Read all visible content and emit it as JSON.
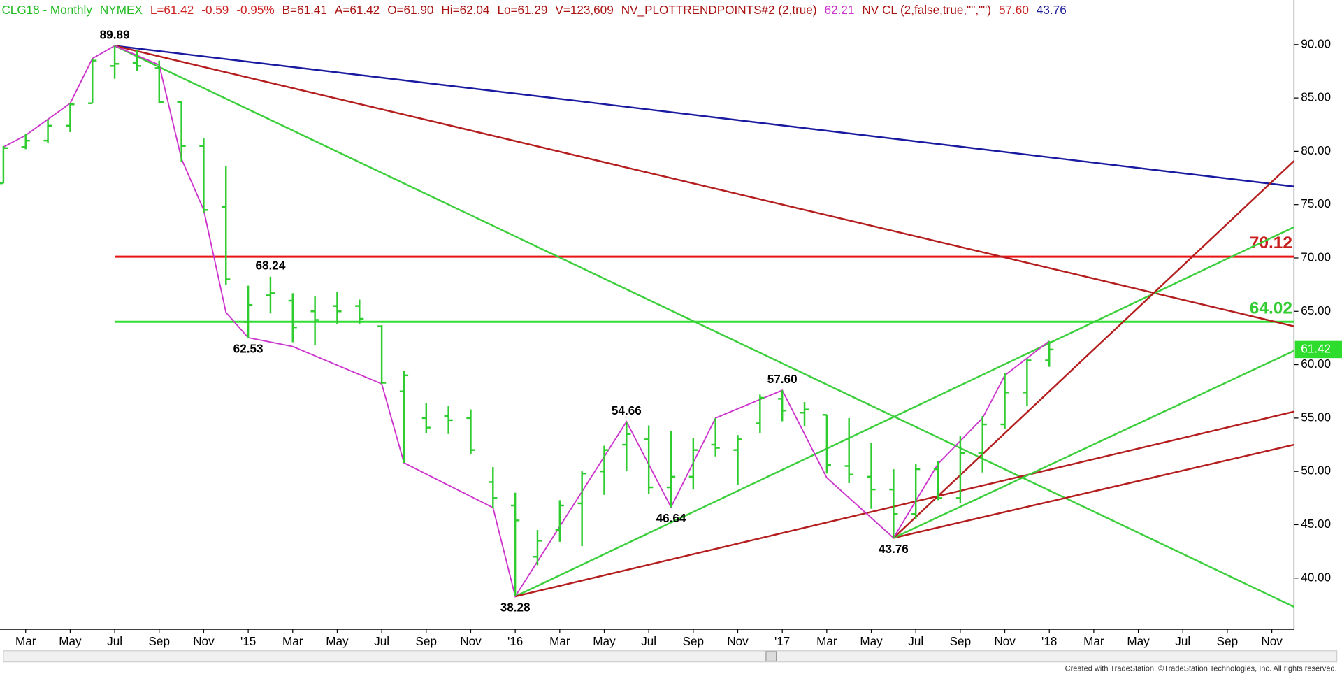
{
  "header": [
    {
      "text": "CLG18 - Monthly",
      "color": "#22bb22"
    },
    {
      "text": "NYMEX",
      "color": "#22bb22"
    },
    {
      "text": "L=61.42",
      "color": "#cc2222"
    },
    {
      "text": "-0.59",
      "color": "#cc2222"
    },
    {
      "text": "-0.95%",
      "color": "#cc2222"
    },
    {
      "text": "B=61.41",
      "color": "#aa1111"
    },
    {
      "text": "A=61.42",
      "color": "#aa1111"
    },
    {
      "text": "O=61.90",
      "color": "#aa1111"
    },
    {
      "text": "Hi=62.04",
      "color": "#aa1111"
    },
    {
      "text": "Lo=61.29",
      "color": "#aa1111"
    },
    {
      "text": "V=123,609",
      "color": "#aa1111"
    },
    {
      "text": "NV_PLOTTRENDPOINTS#2 (2,true)",
      "color": "#aa1111"
    },
    {
      "text": "62.21",
      "color": "#cc33cc"
    },
    {
      "text": "NV CL (2,false,true,\"\",\"\")",
      "color": "#aa1111"
    },
    {
      "text": "57.60",
      "color": "#cc2222"
    },
    {
      "text": "43.76",
      "color": "#1a1a99"
    }
  ],
  "footer": "Created with TradeStation. ©TradeStation Technologies, Inc. All rights reserved.",
  "chart_data": {
    "type": "ohlc",
    "color": "#2ecc2e",
    "categories": [
      null,
      "Mar",
      null,
      "May",
      null,
      "Jul",
      null,
      "Sep",
      null,
      "Nov",
      null,
      "'15",
      null,
      "Mar",
      null,
      "May",
      null,
      "Jul",
      null,
      "Sep",
      null,
      "Nov",
      null,
      "'16",
      null,
      "Mar",
      null,
      "May",
      null,
      "Jul",
      null,
      "Sep",
      null,
      "Nov",
      null,
      "'17",
      null,
      "Mar",
      null,
      "May",
      null,
      "Jul",
      null,
      "Sep",
      null,
      "Nov",
      null,
      "'18",
      null,
      "Mar",
      null,
      "May",
      null,
      "Jul",
      null,
      "Sep",
      null,
      "Nov",
      null
    ],
    "open": [
      77.0,
      80.4,
      81.0,
      82.4,
      84.5,
      88.0,
      88.3,
      87.8,
      84.6,
      80.5,
      74.8,
      64.0,
      66.5,
      66.0,
      65.0,
      65.5,
      65.5,
      63.6,
      57.5,
      55.0,
      55.2,
      55.0,
      49.0,
      46.8,
      42.0,
      44.5,
      47.0,
      50.0,
      52.5,
      53.0,
      48.5,
      49.5,
      52.5,
      52.0,
      54.5,
      56.8,
      55.5,
      55.3,
      50.5,
      49.5,
      48.3,
      46.0,
      50.2,
      47.5,
      51.7,
      54.4,
      57.4,
      60.4,
      null,
      null,
      null,
      null,
      null,
      null,
      null,
      null,
      null,
      null,
      null
    ],
    "high": [
      80.5,
      81.6,
      83.0,
      84.5,
      88.7,
      89.89,
      89.5,
      88.5,
      84.7,
      81.2,
      78.6,
      67.4,
      68.24,
      66.7,
      66.4,
      66.8,
      66.1,
      63.7,
      59.4,
      56.4,
      56.1,
      55.8,
      50.4,
      48.0,
      44.5,
      47.3,
      50.0,
      52.4,
      54.66,
      54.3,
      53.8,
      53.1,
      55.0,
      53.4,
      57.2,
      57.6,
      56.5,
      55.3,
      55.0,
      52.7,
      50.2,
      50.7,
      51.0,
      53.3,
      55.2,
      59.2,
      60.5,
      62.21,
      null,
      null,
      null,
      null,
      null,
      null,
      null,
      null,
      null,
      null,
      null
    ],
    "low": [
      77.0,
      80.2,
      80.8,
      81.8,
      84.5,
      86.8,
      87.5,
      84.5,
      79.0,
      74.2,
      67.5,
      62.53,
      64.8,
      62.1,
      61.8,
      63.8,
      63.8,
      58.2,
      50.8,
      53.6,
      53.5,
      51.6,
      46.6,
      38.28,
      41.2,
      43.4,
      43.0,
      47.8,
      50.0,
      47.9,
      46.64,
      48.3,
      51.4,
      48.7,
      53.6,
      54.7,
      54.2,
      49.8,
      48.9,
      46.5,
      43.76,
      45.5,
      47.3,
      47.0,
      49.9,
      54.0,
      56.1,
      59.8,
      null,
      null,
      null,
      null,
      null,
      null,
      null,
      null,
      null,
      null,
      null
    ],
    "close": [
      80.3,
      81.0,
      82.4,
      84.4,
      88.5,
      88.2,
      88.0,
      84.6,
      80.5,
      74.5,
      68.0,
      65.6,
      66.7,
      63.5,
      64.2,
      65.0,
      64.3,
      58.3,
      59.0,
      54.1,
      54.8,
      52.0,
      47.5,
      45.4,
      43.5,
      46.8,
      49.8,
      52.0,
      53.5,
      48.5,
      49.5,
      52.0,
      52.2,
      53.0,
      56.9,
      55.7,
      55.8,
      50.6,
      49.7,
      48.3,
      46.0,
      50.2,
      47.5,
      51.7,
      54.4,
      57.4,
      60.4,
      61.42,
      null,
      null,
      null,
      null,
      null,
      null,
      null,
      null,
      null,
      null,
      null
    ],
    "swing": {
      "color": "#cc33cc",
      "x": [
        0,
        1,
        2,
        3,
        4,
        5,
        7,
        8,
        9,
        10,
        11,
        13,
        17,
        18,
        22,
        23,
        28,
        30,
        32,
        35,
        37,
        40,
        42,
        44,
        45,
        47
      ],
      "values": [
        80.4,
        81.5,
        83.0,
        84.5,
        88.7,
        89.89,
        88.1,
        79.3,
        74.5,
        64.9,
        62.53,
        61.7,
        58.2,
        50.8,
        46.6,
        38.28,
        54.66,
        46.64,
        55.0,
        57.6,
        49.4,
        43.76,
        50.7,
        55.0,
        59.0,
        62.21
      ]
    },
    "annotations": [
      {
        "x": 5,
        "value": 89.89,
        "label": "89.89",
        "position": "above"
      },
      {
        "x": 11,
        "value": 62.53,
        "label": "62.53",
        "position": "below"
      },
      {
        "x": 12,
        "value": 68.24,
        "label": "68.24",
        "position": "above"
      },
      {
        "x": 23,
        "value": 38.28,
        "label": "38.28",
        "position": "below"
      },
      {
        "x": 28,
        "value": 54.66,
        "label": "54.66",
        "position": "above"
      },
      {
        "x": 30,
        "value": 46.64,
        "label": "46.64",
        "position": "below"
      },
      {
        "x": 35,
        "value": 57.6,
        "label": "57.60",
        "position": "above"
      },
      {
        "x": 40,
        "value": 43.76,
        "label": "43.76",
        "position": "below"
      }
    ],
    "trendlines": [
      {
        "color": "#1a1aa0",
        "x": [
          5,
          58
        ],
        "values": [
          89.89,
          76.7
        ]
      },
      {
        "color": "#b41e1e",
        "x": [
          5,
          58
        ],
        "values": [
          89.89,
          63.6
        ]
      },
      {
        "color": "#3ccf3c",
        "x": [
          5,
          58
        ],
        "values": [
          89.89,
          37.3
        ]
      },
      {
        "color": "#3ccf3c",
        "x": [
          23,
          58
        ],
        "values": [
          38.28,
          72.9
        ]
      },
      {
        "color": "#b41e1e",
        "x": [
          23,
          58
        ],
        "values": [
          38.28,
          55.6
        ]
      },
      {
        "color": "#b41e1e",
        "x": [
          40,
          58
        ],
        "values": [
          43.76,
          52.5
        ]
      },
      {
        "color": "#3ccf3c",
        "x": [
          40,
          58
        ],
        "values": [
          43.76,
          61.3
        ]
      },
      {
        "color": "#b41e1e",
        "x": [
          40,
          58
        ],
        "values": [
          43.76,
          79.1
        ]
      }
    ],
    "levels": [
      {
        "value": 70.12,
        "color": "#e81515",
        "label_color": "#c81e1e",
        "start": 5
      },
      {
        "value": 64.02,
        "color": "#33dd33",
        "label_color": "#33cc33",
        "start": 5
      }
    ],
    "last": {
      "value": 61.42,
      "color": "#2edc2e"
    },
    "ylim": [
      35.19,
      94.17
    ],
    "yticks": [
      {
        "value": 40,
        "label": "40.00"
      },
      {
        "value": 45,
        "label": "45.00"
      },
      {
        "value": 50,
        "label": "50.00"
      },
      {
        "value": 55,
        "label": "55.00"
      },
      {
        "value": 60,
        "label": "60.00"
      },
      {
        "value": 65,
        "label": "65.00"
      },
      {
        "value": 70,
        "label": "70.00"
      },
      {
        "value": 75,
        "label": "75.00"
      },
      {
        "value": 80,
        "label": "80.00"
      },
      {
        "value": 85,
        "label": "85.00"
      },
      {
        "value": 90,
        "label": "90.00"
      }
    ]
  }
}
